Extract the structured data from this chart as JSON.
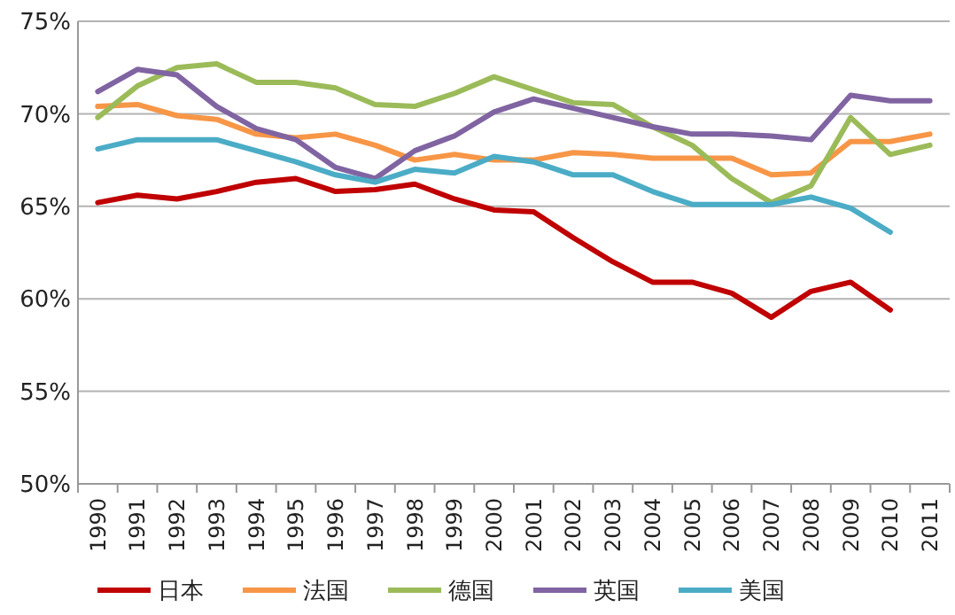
{
  "chart_data": {
    "type": "line",
    "categories": [
      "1990",
      "1991",
      "1992",
      "1993",
      "1994",
      "1995",
      "1996",
      "1997",
      "1998",
      "1999",
      "2000",
      "2001",
      "2002",
      "2003",
      "2004",
      "2005",
      "2006",
      "2007",
      "2008",
      "2009",
      "2010",
      "2011"
    ],
    "series": [
      {
        "name": "日本",
        "color": "#c00000",
        "values": [
          65.2,
          65.6,
          65.4,
          65.8,
          66.3,
          66.5,
          65.8,
          65.9,
          66.2,
          65.4,
          64.8,
          64.7,
          63.3,
          62.0,
          60.9,
          60.9,
          60.3,
          59.0,
          60.4,
          60.9,
          59.4,
          null
        ]
      },
      {
        "name": "法国",
        "color": "#f79646",
        "values": [
          70.4,
          70.5,
          69.9,
          69.7,
          68.9,
          68.7,
          68.9,
          68.3,
          67.5,
          67.8,
          67.5,
          67.5,
          67.9,
          67.8,
          67.6,
          67.6,
          67.6,
          66.7,
          66.8,
          68.5,
          68.5,
          68.9
        ]
      },
      {
        "name": "德国",
        "color": "#9bbb59",
        "values": [
          69.8,
          71.5,
          72.5,
          72.7,
          71.7,
          71.7,
          71.4,
          70.5,
          70.4,
          71.1,
          72.0,
          71.3,
          70.6,
          70.5,
          69.3,
          68.3,
          66.5,
          65.2,
          66.1,
          69.8,
          67.8,
          68.3
        ]
      },
      {
        "name": "英国",
        "color": "#8064a2",
        "values": [
          71.2,
          72.4,
          72.1,
          70.4,
          69.2,
          68.6,
          67.1,
          66.5,
          68.0,
          68.8,
          70.1,
          70.8,
          70.3,
          69.8,
          69.3,
          68.9,
          68.9,
          68.8,
          68.6,
          71.0,
          70.7,
          70.7
        ]
      },
      {
        "name": "美国",
        "color": "#4bacc6",
        "values": [
          68.1,
          68.6,
          68.6,
          68.6,
          68.0,
          67.4,
          66.7,
          66.3,
          67.0,
          66.8,
          67.7,
          67.4,
          66.7,
          66.7,
          65.8,
          65.1,
          65.1,
          65.1,
          65.5,
          64.9,
          63.6,
          null
        ]
      }
    ],
    "ylim": [
      50,
      75
    ],
    "yticks": [
      {
        "value": 50,
        "label": "50%"
      },
      {
        "value": 55,
        "label": "55%"
      },
      {
        "value": 60,
        "label": "60%"
      },
      {
        "value": 65,
        "label": "65%"
      },
      {
        "value": 70,
        "label": "70%"
      },
      {
        "value": 75,
        "label": "75%"
      }
    ],
    "grid": "y",
    "legend": "bottom",
    "marker": "none",
    "line_style": "solid"
  }
}
